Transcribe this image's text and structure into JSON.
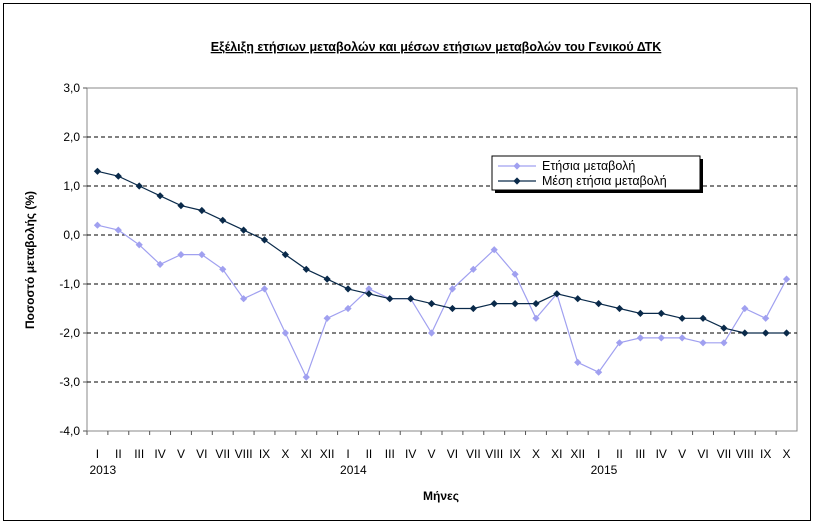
{
  "chart_data": {
    "type": "line",
    "title": "Εξέλιξη ετήσιων μεταβολών και μέσων ετήσιων μεταβολών του Γενικού ΔΤΚ",
    "xlabel": "Μήνες",
    "ylabel": "Ποσοστό μεταβολής (%)",
    "ylim": [
      -4.0,
      3.0
    ],
    "yticks": [
      "3,0",
      "2,0",
      "1,0",
      "0,0",
      "-1,0",
      "-2,0",
      "-3,0",
      "-4,0"
    ],
    "categories": [
      "I",
      "II",
      "III",
      "IV",
      "V",
      "VI",
      "VII",
      "VIII",
      "IX",
      "X",
      "XI",
      "XII",
      "I",
      "II",
      "III",
      "IV",
      "V",
      "VI",
      "VII",
      "VIII",
      "IX",
      "X",
      "XI",
      "XII",
      "I",
      "II",
      "III",
      "IV",
      "V",
      "VI",
      "VII",
      "VIII",
      "IX",
      "X"
    ],
    "years": [
      {
        "label": "2013",
        "index": 0
      },
      {
        "label": "2014",
        "index": 12
      },
      {
        "label": "2015",
        "index": 24
      }
    ],
    "grid": "horizontal dashed",
    "legend_position": "top-right",
    "series": [
      {
        "name": "Ετήσια μεταβολή",
        "color": "#a0a0f0",
        "marker": "diamond",
        "values": [
          0.2,
          0.1,
          -0.2,
          -0.6,
          -0.4,
          -0.4,
          -0.7,
          -1.3,
          -1.1,
          -2.0,
          -2.9,
          -1.7,
          -1.5,
          -1.1,
          -1.3,
          -1.3,
          -2.0,
          -1.1,
          -0.7,
          -0.3,
          -0.8,
          -1.7,
          -1.2,
          -2.6,
          -2.8,
          -2.2,
          -2.1,
          -2.1,
          -2.1,
          -2.2,
          -2.2,
          -1.5,
          -1.7,
          -0.9
        ]
      },
      {
        "name": "Μέση ετήσια μεταβολή",
        "color": "#0a2a4a",
        "marker": "diamond",
        "values": [
          1.3,
          1.2,
          1.0,
          0.8,
          0.6,
          0.5,
          0.3,
          0.1,
          -0.1,
          -0.4,
          -0.7,
          -0.9,
          -1.1,
          -1.2,
          -1.3,
          -1.3,
          -1.4,
          -1.5,
          -1.5,
          -1.4,
          -1.4,
          -1.4,
          -1.2,
          -1.3,
          -1.4,
          -1.5,
          -1.6,
          -1.6,
          -1.7,
          -1.7,
          -1.9,
          -2.0,
          -2.0,
          -2.0
        ]
      }
    ]
  }
}
